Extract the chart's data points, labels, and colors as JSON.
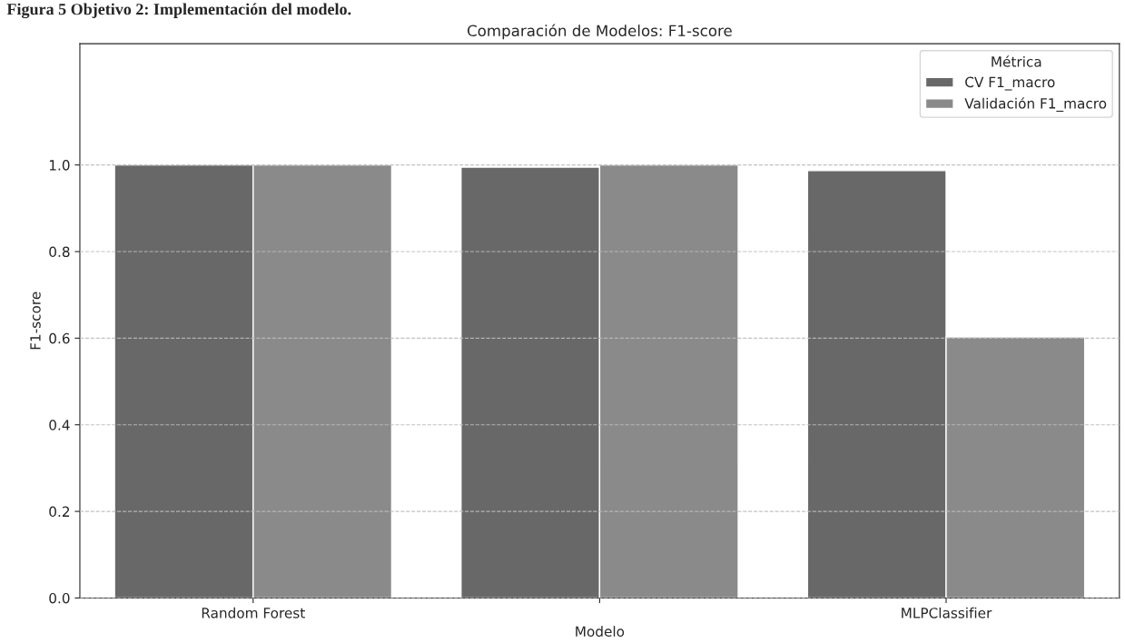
{
  "chart_data": {
    "type": "bar",
    "title": "Comparación de Modelos: F1-score",
    "xlabel": "Modelo",
    "ylabel": "F1-score",
    "legend_title": "Métrica",
    "annotations": [
      "Figura 5 Objetivo 2: Implementación del modelo."
    ],
    "categories": [
      "Random Forest",
      null,
      "MLPClassifier"
    ],
    "series": [
      {
        "name": "CV F1_macro",
        "color": "#686868",
        "values": [
          1.0,
          0.995,
          0.987
        ]
      },
      {
        "name": "Validación F1_macro",
        "color": "#8a8a8a",
        "values": [
          1.0,
          1.0,
          0.603
        ]
      }
    ],
    "ylim": [
      0,
      1.28
    ],
    "yticks": [
      {
        "value": 0,
        "label": "0.0"
      },
      {
        "value": 0.2,
        "label": "0.2"
      },
      {
        "value": 0.4,
        "label": "0.4"
      },
      {
        "value": 0.6,
        "label": "0.6"
      },
      {
        "value": 0.8,
        "label": "0.8"
      },
      {
        "value": 1.0,
        "label": "1.0"
      }
    ],
    "grid": "y",
    "legend": "top right"
  }
}
